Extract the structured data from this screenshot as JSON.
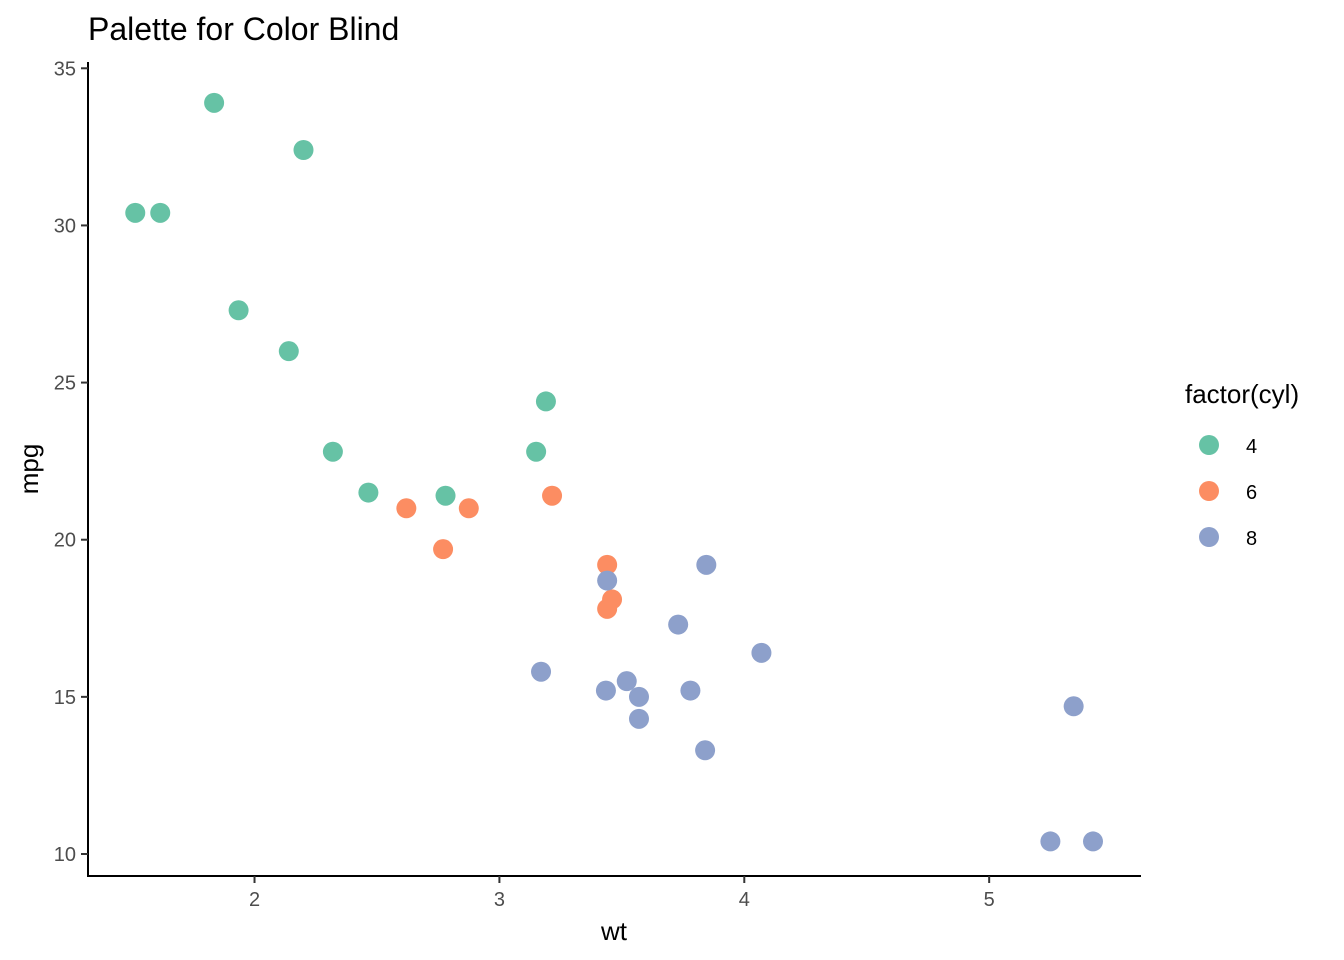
{
  "chart_data": {
    "type": "scatter",
    "title": "Palette for Color Blind",
    "xlabel": "wt",
    "ylabel": "mpg",
    "xlim": [
      1.32,
      5.62
    ],
    "ylim": [
      9.3,
      35.2
    ],
    "x_ticks": [
      2,
      3,
      4,
      5
    ],
    "y_ticks": [
      10,
      15,
      20,
      25,
      30,
      35
    ],
    "grid": false,
    "legend": {
      "title": "factor(cyl)",
      "position": "right",
      "entries": [
        "4",
        "6",
        "8"
      ]
    },
    "series": [
      {
        "name": "4",
        "color": "#66C2A5",
        "points": [
          [
            1.513,
            30.4
          ],
          [
            1.615,
            30.4
          ],
          [
            1.835,
            33.9
          ],
          [
            1.935,
            27.3
          ],
          [
            2.14,
            26.0
          ],
          [
            2.2,
            32.4
          ],
          [
            2.32,
            22.8
          ],
          [
            2.465,
            21.5
          ],
          [
            2.78,
            21.4
          ],
          [
            3.15,
            22.8
          ],
          [
            3.19,
            24.4
          ]
        ]
      },
      {
        "name": "6",
        "color": "#FC8D62",
        "points": [
          [
            2.62,
            21.0
          ],
          [
            2.77,
            19.7
          ],
          [
            2.875,
            21.0
          ],
          [
            3.215,
            21.4
          ],
          [
            3.44,
            17.8
          ],
          [
            3.44,
            19.2
          ],
          [
            3.46,
            18.1
          ]
        ]
      },
      {
        "name": "8",
        "color": "#8DA0CB",
        "points": [
          [
            3.17,
            15.8
          ],
          [
            3.435,
            15.2
          ],
          [
            3.44,
            18.7
          ],
          [
            3.52,
            15.5
          ],
          [
            3.57,
            15.0
          ],
          [
            3.57,
            14.3
          ],
          [
            3.73,
            17.3
          ],
          [
            3.78,
            15.2
          ],
          [
            3.84,
            13.3
          ],
          [
            3.845,
            19.2
          ],
          [
            4.07,
            16.4
          ],
          [
            5.25,
            10.4
          ],
          [
            5.345,
            14.7
          ],
          [
            5.424,
            10.4
          ]
        ]
      }
    ]
  }
}
